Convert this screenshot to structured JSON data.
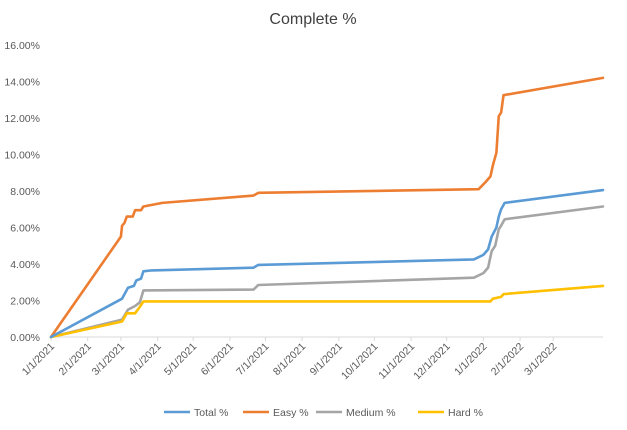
{
  "chart_data": {
    "type": "line",
    "title": "Complete %",
    "xlabel": "",
    "ylabel": "",
    "x_type": "date",
    "xlim": [
      "2021-01-01",
      "2022-04-12"
    ],
    "ylim": [
      0,
      16
    ],
    "y_ticks": [
      "0.00%",
      "2.00%",
      "4.00%",
      "6.00%",
      "8.00%",
      "10.00%",
      "12.00%",
      "14.00%",
      "16.00%"
    ],
    "y_tick_values": [
      0,
      2,
      4,
      6,
      8,
      10,
      12,
      14,
      16
    ],
    "x_ticks": [
      "1/1/2021",
      "2/1/2021",
      "3/1/2021",
      "4/1/2021",
      "5/1/2021",
      "6/1/2021",
      "7/1/2021",
      "8/1/2021",
      "9/1/2021",
      "10/1/2021",
      "11/1/2021",
      "12/1/2021",
      "1/1/2022",
      "2/1/2022",
      "3/1/2022"
    ],
    "x_tick_values": [
      "2021-01-01",
      "2021-02-01",
      "2021-03-01",
      "2021-04-01",
      "2021-05-01",
      "2021-06-01",
      "2021-07-01",
      "2021-08-01",
      "2021-09-01",
      "2021-10-01",
      "2021-11-01",
      "2021-12-01",
      "2022-01-01",
      "2022-02-01",
      "2022-03-01"
    ],
    "grid": false,
    "legend": "bottom",
    "series": [
      {
        "name": "Total %",
        "color": "#5B9BD5",
        "points": [
          [
            "2021-01-01",
            0
          ],
          [
            "2021-03-02",
            2.1
          ],
          [
            "2021-03-07",
            2.7
          ],
          [
            "2021-03-12",
            2.8
          ],
          [
            "2021-03-14",
            3.1
          ],
          [
            "2021-03-18",
            3.2
          ],
          [
            "2021-03-20",
            3.6
          ],
          [
            "2021-03-27",
            3.65
          ],
          [
            "2021-06-21",
            3.8
          ],
          [
            "2021-06-25",
            3.95
          ],
          [
            "2021-12-24",
            4.25
          ],
          [
            "2022-01-01",
            4.5
          ],
          [
            "2022-01-05",
            4.8
          ],
          [
            "2022-01-08",
            5.5
          ],
          [
            "2022-01-12",
            6.0
          ],
          [
            "2022-01-14",
            6.6
          ],
          [
            "2022-01-16",
            7.0
          ],
          [
            "2022-01-19",
            7.35
          ],
          [
            "2022-04-12",
            8.05
          ]
        ]
      },
      {
        "name": "Easy %",
        "color": "#ED7D31",
        "points": [
          [
            "2021-01-01",
            0
          ],
          [
            "2021-03-01",
            5.5
          ],
          [
            "2021-03-02",
            6.1
          ],
          [
            "2021-03-04",
            6.25
          ],
          [
            "2021-03-06",
            6.6
          ],
          [
            "2021-03-11",
            6.6
          ],
          [
            "2021-03-13",
            6.95
          ],
          [
            "2021-03-18",
            6.95
          ],
          [
            "2021-03-20",
            7.15
          ],
          [
            "2021-04-05",
            7.35
          ],
          [
            "2021-06-21",
            7.75
          ],
          [
            "2021-06-25",
            7.9
          ],
          [
            "2021-12-28",
            8.1
          ],
          [
            "2022-01-03",
            8.5
          ],
          [
            "2022-01-07",
            8.8
          ],
          [
            "2022-01-09",
            9.4
          ],
          [
            "2022-01-12",
            10.1
          ],
          [
            "2022-01-14",
            12.1
          ],
          [
            "2022-01-16",
            12.3
          ],
          [
            "2022-01-18",
            13.25
          ],
          [
            "2022-04-12",
            14.2
          ]
        ]
      },
      {
        "name": "Medium %",
        "color": "#A5A5A5",
        "points": [
          [
            "2021-01-01",
            0
          ],
          [
            "2021-03-02",
            0.95
          ],
          [
            "2021-03-07",
            1.5
          ],
          [
            "2021-03-13",
            1.7
          ],
          [
            "2021-03-17",
            1.9
          ],
          [
            "2021-03-20",
            2.55
          ],
          [
            "2021-06-21",
            2.6
          ],
          [
            "2021-06-25",
            2.85
          ],
          [
            "2021-12-24",
            3.25
          ],
          [
            "2022-01-01",
            3.5
          ],
          [
            "2022-01-05",
            3.8
          ],
          [
            "2022-01-08",
            4.7
          ],
          [
            "2022-01-11",
            5.0
          ],
          [
            "2022-01-14",
            5.9
          ],
          [
            "2022-01-16",
            6.1
          ],
          [
            "2022-01-19",
            6.45
          ],
          [
            "2022-04-12",
            7.15
          ]
        ]
      },
      {
        "name": "Hard %",
        "color": "#FFC000",
        "points": [
          [
            "2021-01-01",
            0
          ],
          [
            "2021-03-02",
            0.85
          ],
          [
            "2021-03-06",
            1.3
          ],
          [
            "2021-03-13",
            1.3
          ],
          [
            "2021-03-17",
            1.65
          ],
          [
            "2021-03-20",
            1.95
          ],
          [
            "2022-01-07",
            1.95
          ],
          [
            "2022-01-09",
            2.1
          ],
          [
            "2022-01-16",
            2.2
          ],
          [
            "2022-01-18",
            2.35
          ],
          [
            "2022-04-12",
            2.8
          ]
        ]
      }
    ]
  }
}
